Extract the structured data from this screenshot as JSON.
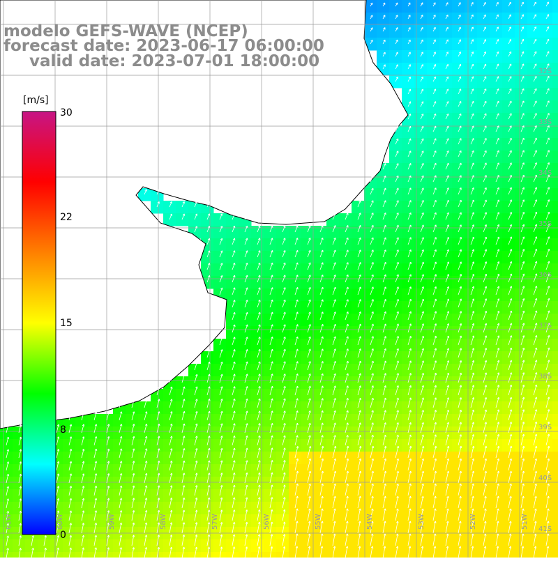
{
  "title": {
    "line1": "modelo GEFS-WAVE (NCEP)",
    "line2": "forecast date: 2023-06-17 06:00:00",
    "line3": "valid date: 2023-07-01 18:00:00"
  },
  "colorbar": {
    "unit": "[m/s]",
    "ticks": [
      "30",
      "22",
      "15",
      "8",
      "0"
    ],
    "min": 0,
    "max": 30,
    "colors": [
      "#0000ff",
      "#00ffff",
      "#00ff00",
      "#ffff00",
      "#ff8000",
      "#ff0000",
      "#c71585"
    ]
  },
  "map": {
    "lat_labels": [
      "32S",
      "33S",
      "34S",
      "35S",
      "36S",
      "37S",
      "38S",
      "39S",
      "40S",
      "41S"
    ],
    "lon_labels": [
      "61W",
      "60W",
      "59W",
      "58W",
      "57W",
      "56W",
      "55W",
      "54W",
      "53W",
      "52W",
      "51W"
    ],
    "land_color": "#ffffff",
    "grid_color": "#9a9a9a",
    "arrow_color": "#ffffff"
  }
}
